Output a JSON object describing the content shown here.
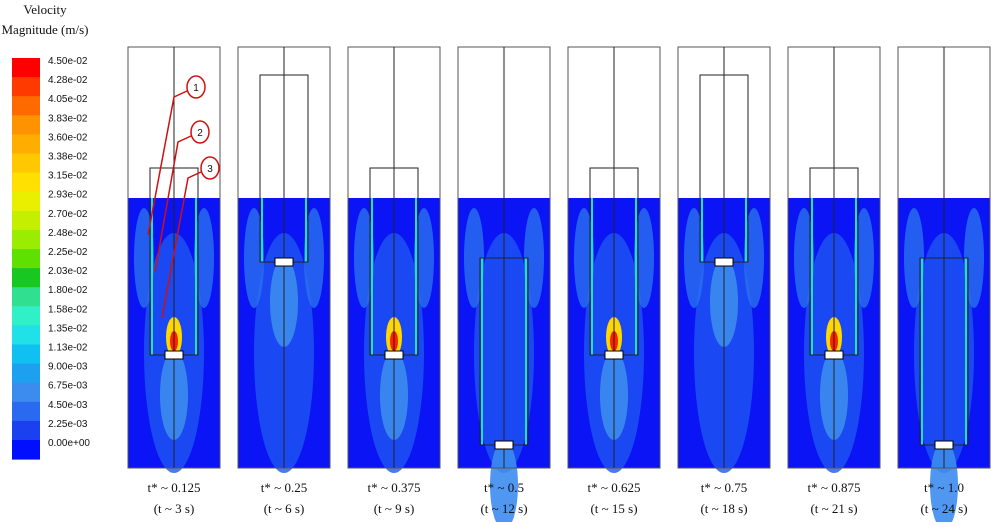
{
  "legend": {
    "title_line1": "Velocity",
    "title_line2": "Magnitude (m/s)",
    "labels": [
      "4.50e-02",
      "4.28e-02",
      "4.05e-02",
      "3.83e-02",
      "3.60e-02",
      "3.38e-02",
      "3.15e-02",
      "2.93e-02",
      "2.70e-02",
      "2.48e-02",
      "2.25e-02",
      "2.03e-02",
      "1.80e-02",
      "1.58e-02",
      "1.35e-02",
      "1.13e-02",
      "9.00e-03",
      "6.75e-03",
      "4.50e-03",
      "2.25e-03",
      "0.00e+00"
    ],
    "colors": [
      "#ff0000",
      "#ff3a00",
      "#ff6a00",
      "#ff9200",
      "#ffae00",
      "#ffc800",
      "#ffe000",
      "#e8f000",
      "#c4f000",
      "#9aec00",
      "#5ee000",
      "#18c820",
      "#30e090",
      "#30f0c8",
      "#20e0e8",
      "#10c0f0",
      "#1ea0f0",
      "#3c8cf0",
      "#2a6af0",
      "#1a40f0",
      "#0010ff"
    ]
  },
  "callouts": [
    "1",
    "2",
    "3"
  ],
  "panels": [
    {
      "line1": "t* ~ 0.125",
      "line2": "(t ~ 3 s)"
    },
    {
      "line1": "t* ~ 0.25",
      "line2": "(t ~ 6 s)"
    },
    {
      "line1": "t* ~ 0.375",
      "line2": "(t ~ 9 s)"
    },
    {
      "line1": "t* ~ 0.5",
      "line2": "(t ~ 12 s)"
    },
    {
      "line1": "t* ~ 0.625",
      "line2": "(t ~ 15 s)"
    },
    {
      "line1": "t* ~ 0.75",
      "line2": "(t ~ 18 s)"
    },
    {
      "line1": "t* ~ 0.875",
      "line2": "(t ~ 21 s)"
    },
    {
      "line1": "t* ~ 1.0",
      "line2": "(t ~ 24 s)"
    }
  ]
}
